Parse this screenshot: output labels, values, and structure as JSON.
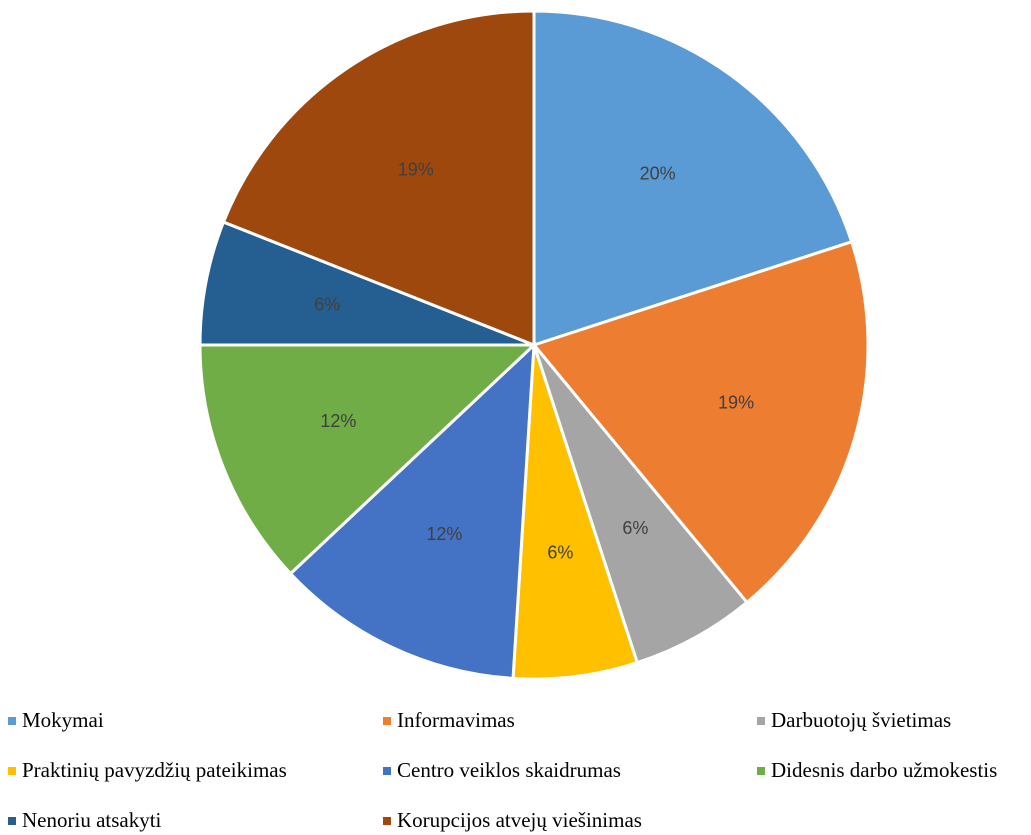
{
  "chart_data": {
    "type": "pie",
    "title": "",
    "categories": [
      "Mokymai",
      "Informavimas",
      "Darbuotojų švietimas",
      "Praktinių pavyzdžių pateikimas",
      "Centro veiklos skaidrumas",
      "Didesnis darbo užmokestis",
      "Nenoriu atsakyti",
      "Korupcijos atvejų viešinimas"
    ],
    "values": [
      20,
      19,
      6,
      6,
      12,
      12,
      6,
      19
    ],
    "labels": [
      "20%",
      "19%",
      "6%",
      "6%",
      "12%",
      "12%",
      "6%",
      "19%"
    ],
    "colors": [
      "#5b9bd5",
      "#ed7d31",
      "#a5a5a5",
      "#ffc000",
      "#4472c4",
      "#70ad47",
      "#255e91",
      "#9e480e"
    ],
    "legend_position": "bottom"
  }
}
